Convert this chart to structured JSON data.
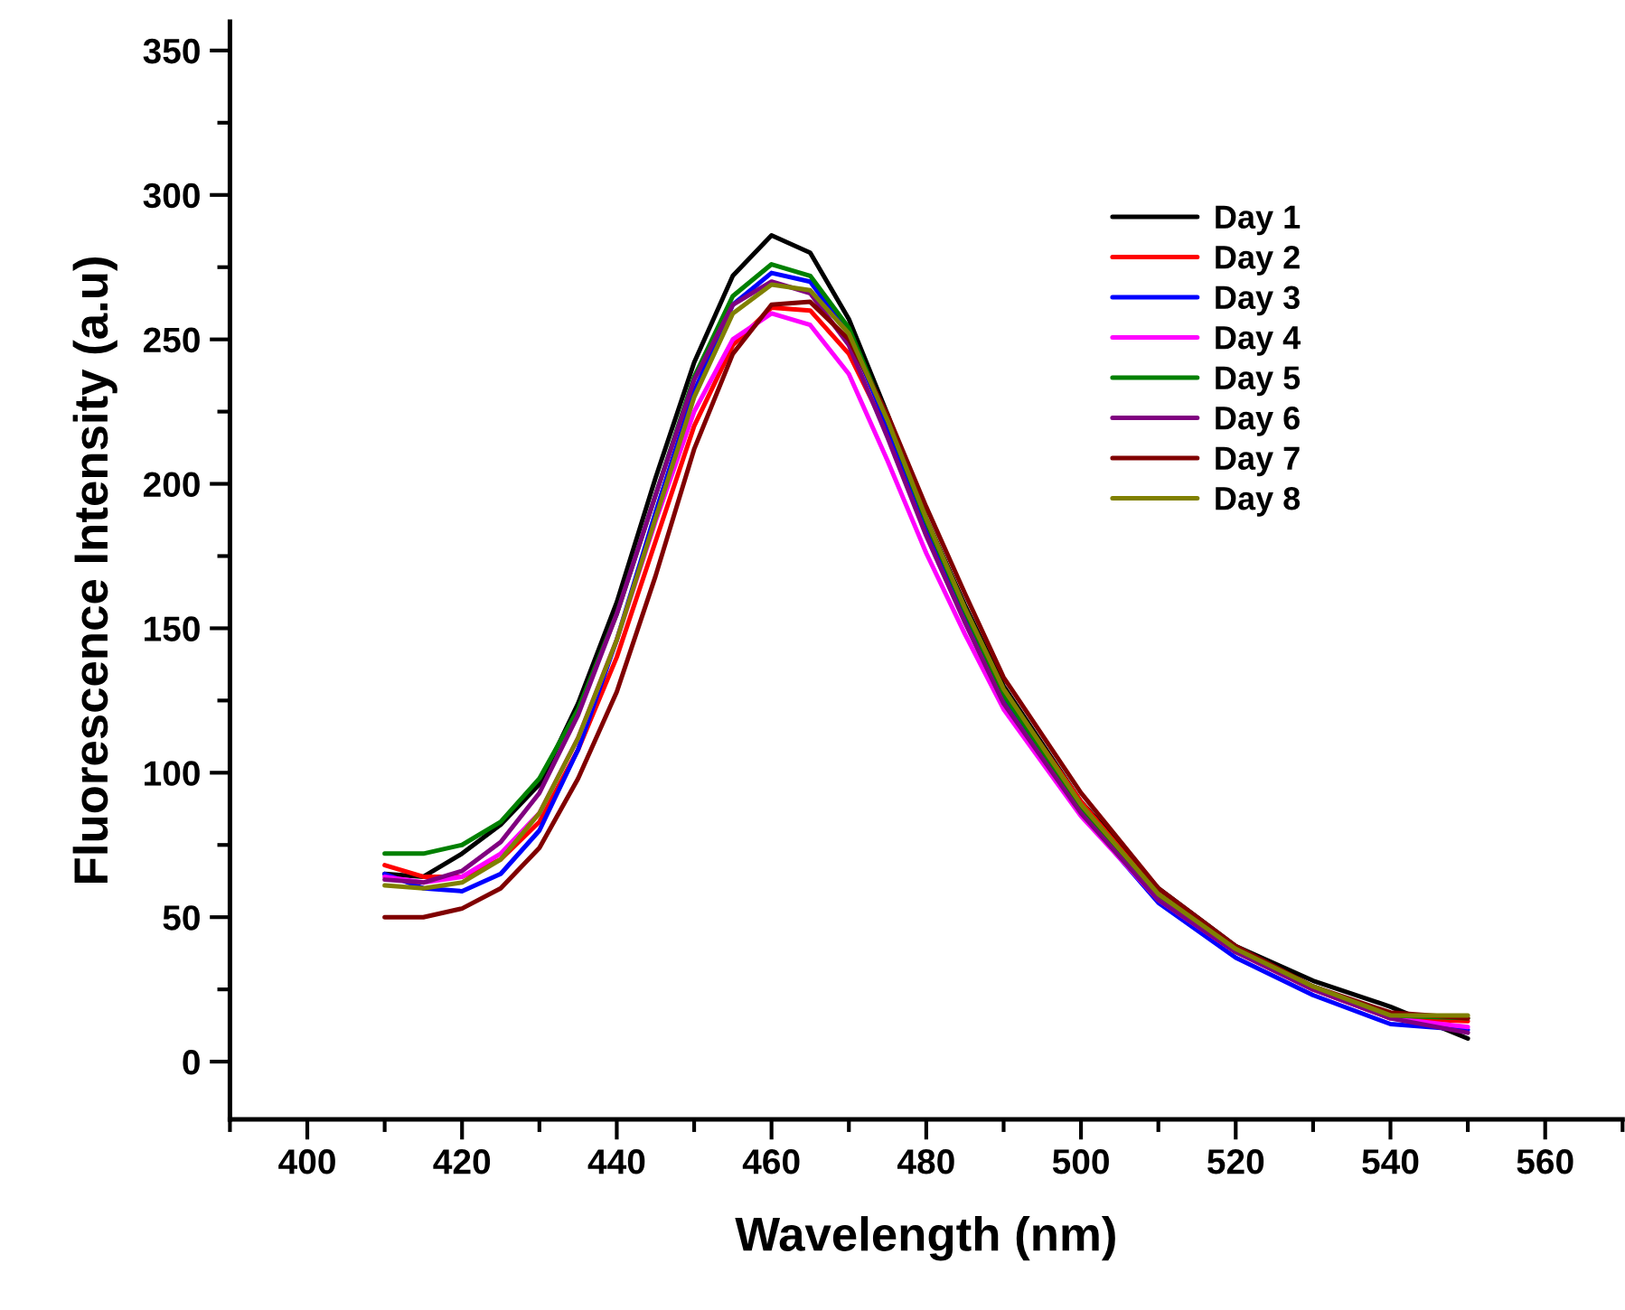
{
  "chart_data": {
    "type": "line",
    "xlabel": "Wavelength (nm)",
    "ylabel": "Fluorescence Intensity (a.u)",
    "x": [
      410,
      415,
      420,
      425,
      430,
      435,
      440,
      445,
      450,
      455,
      460,
      465,
      470,
      475,
      480,
      485,
      490,
      500,
      510,
      520,
      530,
      540,
      550
    ],
    "xlim": [
      390,
      570
    ],
    "xticks": [
      400,
      420,
      440,
      460,
      480,
      500,
      520,
      540,
      560
    ],
    "ylim": [
      -20,
      360
    ],
    "yticks": [
      0,
      50,
      100,
      150,
      200,
      250,
      300,
      350
    ],
    "grid": false,
    "legend": "top right",
    "marker": "none",
    "line_style": "solid",
    "series": [
      {
        "name": "Day 1",
        "color": "#000000",
        "values": [
          65,
          64,
          72,
          82,
          96,
          124,
          159,
          202,
          242,
          272,
          286,
          280,
          257,
          224,
          188,
          158,
          130,
          90,
          60,
          40,
          28,
          19,
          8
        ]
      },
      {
        "name": "Day 2",
        "color": "#ff0000",
        "values": [
          68,
          64,
          64,
          70,
          83,
          108,
          140,
          180,
          220,
          248,
          261,
          260,
          245,
          218,
          185,
          156,
          128,
          90,
          58,
          38,
          25,
          15,
          14
        ]
      },
      {
        "name": "Day 3",
        "color": "#0000ff",
        "values": [
          65,
          60,
          59,
          65,
          80,
          108,
          146,
          190,
          232,
          262,
          273,
          270,
          252,
          220,
          183,
          153,
          125,
          86,
          55,
          36,
          23,
          13,
          11
        ]
      },
      {
        "name": "Day 4",
        "color": "#ff00ff",
        "values": [
          64,
          62,
          64,
          72,
          86,
          112,
          146,
          187,
          225,
          250,
          259,
          255,
          238,
          208,
          176,
          148,
          122,
          85,
          56,
          38,
          25,
          15,
          12
        ]
      },
      {
        "name": "Day 5",
        "color": "#008000",
        "values": [
          72,
          72,
          75,
          83,
          98,
          122,
          155,
          196,
          237,
          265,
          276,
          272,
          254,
          222,
          187,
          156,
          127,
          88,
          57,
          38,
          26,
          16,
          15
        ]
      },
      {
        "name": "Day 6",
        "color": "#800080",
        "values": [
          63,
          62,
          66,
          76,
          93,
          120,
          155,
          196,
          236,
          262,
          270,
          266,
          248,
          216,
          182,
          152,
          124,
          86,
          56,
          38,
          25,
          15,
          10
        ]
      },
      {
        "name": "Day 7",
        "color": "#800000",
        "values": [
          50,
          50,
          53,
          60,
          74,
          98,
          128,
          168,
          212,
          245,
          262,
          263,
          250,
          224,
          192,
          162,
          133,
          93,
          60,
          40,
          26,
          17,
          15
        ]
      },
      {
        "name": "Day 8",
        "color": "#808000",
        "values": [
          61,
          60,
          62,
          70,
          86,
          112,
          146,
          188,
          230,
          259,
          269,
          267,
          252,
          222,
          188,
          157,
          129,
          89,
          58,
          39,
          26,
          16,
          16
        ]
      }
    ]
  }
}
